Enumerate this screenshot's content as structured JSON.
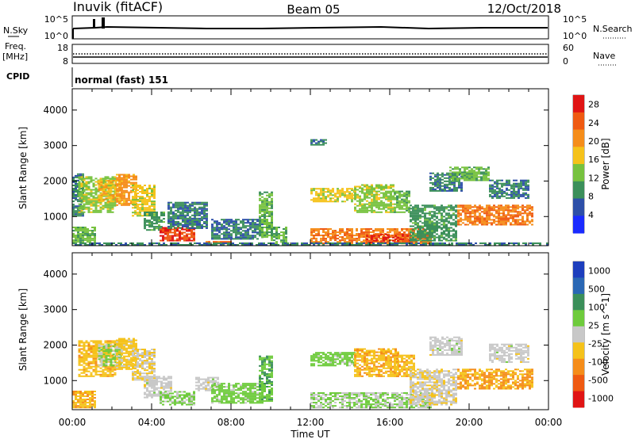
{
  "header": {
    "station": "Inuvik (fitACF)",
    "beam": "Beam 05",
    "date": "12/Oct/2018"
  },
  "top_panel": {
    "left_label": "N.Sky",
    "left_ticks": [
      "10^5",
      "10^0"
    ],
    "right_ticks": [
      "10^5",
      "10^0"
    ],
    "right_label": "N.Search"
  },
  "freq_panel": {
    "left_label_1": "Freq.",
    "left_label_2": "[MHz]",
    "left_ticks": [
      "18",
      "8"
    ],
    "right_ticks": [
      "60",
      "0"
    ],
    "right_label": "Nave"
  },
  "cpid_panel": {
    "label": "CPID",
    "value": "normal (fast) 151"
  },
  "colors": {
    "power": [
      "#1a2bff",
      "#2d4fa8",
      "#3b8f5a",
      "#77c23f",
      "#f5c21a",
      "#f58d1a",
      "#ef5a12",
      "#e01414"
    ],
    "velocity": [
      "#1d3ebd",
      "#2a67b4",
      "#3b8f5a",
      "#6ecb3c",
      "#c8c8c8",
      "#f5c21a",
      "#f58d1a",
      "#ef5a12",
      "#e01414"
    ]
  },
  "chart_data": [
    {
      "type": "heatmap",
      "name": "power",
      "ylabel": "Slant Range [km]",
      "yticks": [
        "1000",
        "2000",
        "3000",
        "4000"
      ],
      "ylim": [
        180,
        4600
      ],
      "xlim": [
        0,
        24
      ],
      "colorbar_label": "Power [dB]",
      "colorbar_ticks": [
        "4",
        "8",
        "12",
        "16",
        "20",
        "24",
        "28"
      ],
      "colorbar_range": [
        0,
        30
      ],
      "regions": [
        {
          "t0": 0.0,
          "t1": 1.2,
          "r0": 220,
          "r1": 700,
          "v": 12
        },
        {
          "t0": 0.0,
          "t1": 0.5,
          "r0": 1000,
          "r1": 2200,
          "v": 8
        },
        {
          "t0": 0.3,
          "t1": 2.2,
          "r0": 1100,
          "r1": 2100,
          "v": 14
        },
        {
          "t0": 1.3,
          "t1": 2.4,
          "r0": 1400,
          "r1": 2000,
          "v": 18
        },
        {
          "t0": 2.2,
          "t1": 3.2,
          "r0": 1300,
          "r1": 2200,
          "v": 20
        },
        {
          "t0": 3.0,
          "t1": 4.2,
          "r0": 1000,
          "r1": 1900,
          "v": 16
        },
        {
          "t0": 3.6,
          "t1": 4.6,
          "r0": 600,
          "r1": 1100,
          "v": 10
        },
        {
          "t0": 4.4,
          "t1": 6.2,
          "r0": 300,
          "r1": 700,
          "v": 26
        },
        {
          "t0": 4.8,
          "t1": 6.8,
          "r0": 650,
          "r1": 1400,
          "v": 8
        },
        {
          "t0": 6.6,
          "t1": 8.0,
          "r0": 220,
          "r1": 300,
          "v": 24
        },
        {
          "t0": 7.0,
          "t1": 9.6,
          "r0": 350,
          "r1": 900,
          "v": 8
        },
        {
          "t0": 9.4,
          "t1": 10.0,
          "r0": 400,
          "r1": 1700,
          "v": 12
        },
        {
          "t0": 10.0,
          "t1": 10.8,
          "r0": 220,
          "r1": 700,
          "v": 12
        },
        {
          "t0": 12.0,
          "t1": 14.2,
          "r0": 1400,
          "r1": 1800,
          "v": 16
        },
        {
          "t0": 12.0,
          "t1": 12.8,
          "r0": 3000,
          "r1": 3150,
          "v": 8
        },
        {
          "t0": 14.2,
          "t1": 16.2,
          "r0": 1100,
          "r1": 1900,
          "v": 14
        },
        {
          "t0": 16.2,
          "t1": 17.0,
          "r0": 1100,
          "r1": 1700,
          "v": 12
        },
        {
          "t0": 12.0,
          "t1": 18.0,
          "r0": 220,
          "r1": 650,
          "v": 22
        },
        {
          "t0": 14.8,
          "t1": 17.0,
          "r0": 250,
          "r1": 500,
          "v": 26
        },
        {
          "t0": 17.0,
          "t1": 19.4,
          "r0": 300,
          "r1": 1300,
          "v": 10
        },
        {
          "t0": 18.0,
          "t1": 19.6,
          "r0": 1700,
          "r1": 2200,
          "v": 8
        },
        {
          "t0": 19.4,
          "t1": 23.2,
          "r0": 750,
          "r1": 1300,
          "v": 22
        },
        {
          "t0": 19.0,
          "t1": 21.0,
          "r0": 2000,
          "r1": 2400,
          "v": 12
        },
        {
          "t0": 21.0,
          "t1": 23.0,
          "r0": 1500,
          "r1": 2000,
          "v": 8
        },
        {
          "t0": 0.0,
          "t1": 24.0,
          "r0": 180,
          "r1": 240,
          "v": 8
        }
      ]
    },
    {
      "type": "heatmap",
      "name": "velocity",
      "ylabel": "Slant Range [km]",
      "yticks": [
        "1000",
        "2000",
        "3000",
        "4000"
      ],
      "ylim": [
        180,
        4600
      ],
      "xlabel": "Time UT",
      "xticks": [
        "00:00",
        "04:00",
        "08:00",
        "12:00",
        "16:00",
        "20:00",
        "00:00"
      ],
      "xlim": [
        0,
        24
      ],
      "colorbar_label": "Velocity [m s^-1]",
      "colorbar_ticks": [
        "1000",
        "500",
        "100",
        "25",
        "-25",
        "-100",
        "-500",
        "-1000"
      ],
      "colorbar_range": [
        -1000,
        1000
      ],
      "regions": [
        {
          "t0": 0.0,
          "t1": 1.2,
          "r0": 220,
          "r1": 700,
          "v": -300
        },
        {
          "t0": 0.3,
          "t1": 2.2,
          "r0": 1100,
          "r1": 2100,
          "v": -250
        },
        {
          "t0": 1.3,
          "t1": 2.4,
          "r0": 1400,
          "r1": 2000,
          "v": 150
        },
        {
          "t0": 2.2,
          "t1": 3.2,
          "r0": 1300,
          "r1": 2200,
          "v": -200
        },
        {
          "t0": 3.0,
          "t1": 4.2,
          "r0": 1000,
          "r1": 1900,
          "v": -100
        },
        {
          "t0": 3.6,
          "t1": 5.0,
          "r0": 500,
          "r1": 1100,
          "v": 0
        },
        {
          "t0": 4.4,
          "t1": 6.2,
          "r0": 300,
          "r1": 700,
          "v": 150
        },
        {
          "t0": 6.2,
          "t1": 7.4,
          "r0": 700,
          "r1": 1100,
          "v": 0
        },
        {
          "t0": 7.0,
          "t1": 9.6,
          "r0": 350,
          "r1": 900,
          "v": 200
        },
        {
          "t0": 9.4,
          "t1": 10.0,
          "r0": 400,
          "r1": 1700,
          "v": 300
        },
        {
          "t0": 12.0,
          "t1": 14.2,
          "r0": 1400,
          "r1": 1800,
          "v": 200
        },
        {
          "t0": 14.2,
          "t1": 16.4,
          "r0": 1100,
          "r1": 1900,
          "v": -300
        },
        {
          "t0": 16.2,
          "t1": 17.2,
          "r0": 1100,
          "r1": 1700,
          "v": -250
        },
        {
          "t0": 12.0,
          "t1": 18.0,
          "r0": 220,
          "r1": 650,
          "v": 120
        },
        {
          "t0": 17.0,
          "t1": 19.4,
          "r0": 300,
          "r1": 1300,
          "v": -60
        },
        {
          "t0": 18.0,
          "t1": 19.6,
          "r0": 1700,
          "r1": 2200,
          "v": 0
        },
        {
          "t0": 19.4,
          "t1": 23.2,
          "r0": 750,
          "r1": 1300,
          "v": -350
        },
        {
          "t0": 21.0,
          "t1": 23.0,
          "r0": 1500,
          "r1": 2000,
          "v": 0
        }
      ]
    }
  ]
}
